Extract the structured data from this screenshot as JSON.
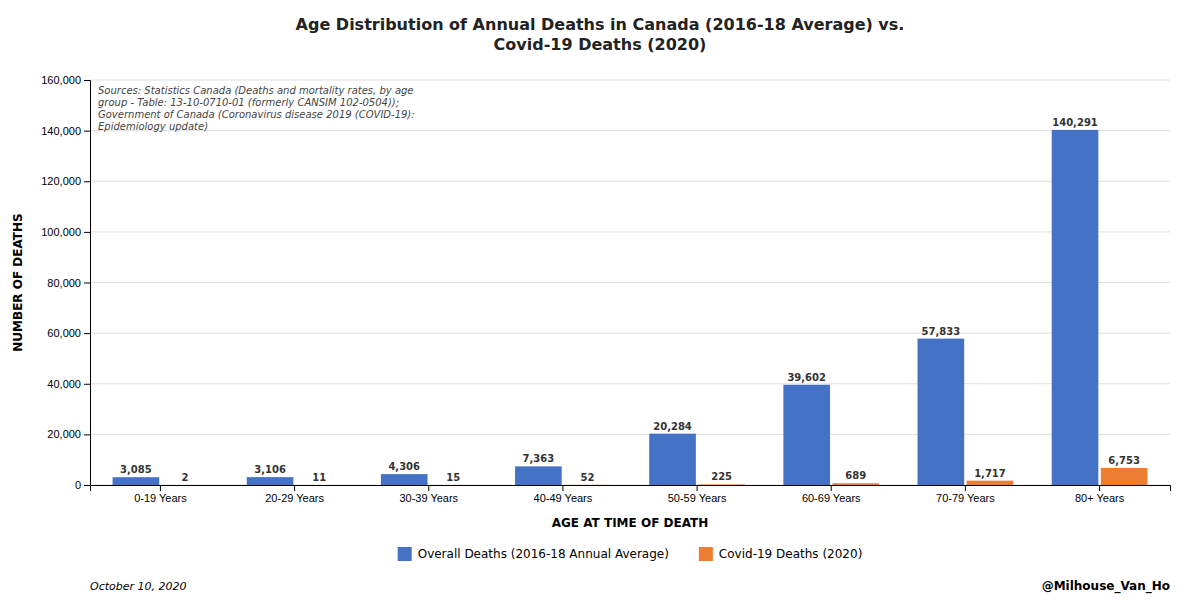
{
  "chart_data": {
    "type": "bar",
    "title": "Age Distribution of Annual Deaths in Canada (2016-18 Average) vs.\nCovid-19 Deaths (2020)",
    "xlabel": "AGE AT TIME OF DEATH",
    "ylabel": "NUMBER OF DEATHS",
    "categories": [
      "0-19 Years",
      "20-29 Years",
      "30-39 Years",
      "40-49 Years",
      "50-59 Years",
      "60-69 Years",
      "70-79 Years",
      "80+ Years"
    ],
    "series": [
      {
        "name": "Overall Deaths (2016-18 Annual Average)",
        "color": "#4472C4",
        "values": [
          3085,
          3106,
          4306,
          7363,
          20284,
          39602,
          57833,
          140291
        ],
        "value_labels": [
          "3,085",
          "3,106",
          "4,306",
          "7,363",
          "20,284",
          "39,602",
          "57,833",
          "140,291"
        ]
      },
      {
        "name": "Covid-19 Deaths (2020)",
        "color": "#ED7D31",
        "values": [
          2,
          11,
          15,
          52,
          225,
          689,
          1717,
          6753
        ],
        "value_labels": [
          "2",
          "11",
          "15",
          "52",
          "225",
          "689",
          "1,717",
          "6,753"
        ]
      }
    ],
    "ylim": [
      0,
      160000
    ],
    "yticks": [
      0,
      {
        "value": 20000,
        "label": "20,000"
      },
      {
        "value": 40000,
        "label": "40,000"
      },
      {
        "value": 60000,
        "label": "60,000"
      },
      {
        "value": 80000,
        "label": "80,000"
      },
      {
        "value": 100000,
        "label": "100,000"
      },
      {
        "value": 120000,
        "label": "120,000"
      },
      {
        "value": 140000,
        "label": "140,000"
      },
      {
        "value": 160000,
        "label": "160,000"
      }
    ],
    "grid": true,
    "data_labels": true,
    "legend": "bottom",
    "annotations": [
      "Sources: Statistics Canada (Deaths and mortality rates, by age\ngroup - Table: 13-10-0710-01 (formerly CANSIM 102-0504));\nGovernment of Canada (Coronavirus disease 2019 (COVID-19):\nEpidemiology update)",
      "October 10, 2020",
      "@Milhouse_Van_Ho"
    ]
  }
}
